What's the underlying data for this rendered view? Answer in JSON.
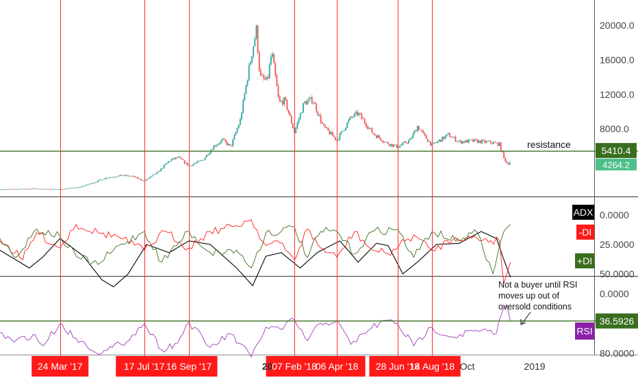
{
  "chart_data": [
    {
      "type": "candlestick",
      "panel": "price",
      "y_ticks": [
        {
          "label": "20000.0",
          "value": 20000
        },
        {
          "label": "16000.0",
          "value": 16000
        },
        {
          "label": "12000.0",
          "value": 12000
        },
        {
          "label": "8000.0",
          "value": 8000
        }
      ],
      "ylim": [
        0,
        22000
      ],
      "x_range": [
        "2017-01-01",
        "2018-12-31"
      ],
      "series_points": [
        [
          "2017-01-01",
          990
        ],
        [
          "2017-02-15",
          1060
        ],
        [
          "2017-03-24",
          980
        ],
        [
          "2017-04-20",
          1250
        ],
        [
          "2017-05-10",
          1800
        ],
        [
          "2017-05-25",
          2300
        ],
        [
          "2017-06-15",
          2600
        ],
        [
          "2017-07-01",
          2500
        ],
        [
          "2017-07-17",
          1950
        ],
        [
          "2017-08-05",
          3000
        ],
        [
          "2017-08-20",
          4300
        ],
        [
          "2017-09-01",
          4700
        ],
        [
          "2017-09-16",
          3700
        ],
        [
          "2017-10-05",
          4400
        ],
        [
          "2017-10-20",
          6000
        ],
        [
          "2017-11-01",
          6700
        ],
        [
          "2017-11-12",
          5900
        ],
        [
          "2017-11-25",
          9000
        ],
        [
          "2017-12-07",
          15000
        ],
        [
          "2017-12-17",
          19500
        ],
        [
          "2017-12-22",
          14000
        ],
        [
          "2018-01-01",
          13500
        ],
        [
          "2018-01-07",
          16900
        ],
        [
          "2018-01-17",
          11000
        ],
        [
          "2018-01-25",
          11300
        ],
        [
          "2018-02-07",
          7600
        ],
        [
          "2018-02-20",
          11000
        ],
        [
          "2018-03-04",
          11400
        ],
        [
          "2018-03-18",
          8300
        ],
        [
          "2018-04-06",
          6700
        ],
        [
          "2018-04-25",
          9300
        ],
        [
          "2018-05-05",
          9800
        ],
        [
          "2018-05-25",
          7500
        ],
        [
          "2018-06-12",
          6400
        ],
        [
          "2018-06-28",
          5900
        ],
        [
          "2018-07-15",
          6700
        ],
        [
          "2018-07-25",
          8300
        ],
        [
          "2018-08-05",
          7000
        ],
        [
          "2018-08-14",
          6100
        ],
        [
          "2018-09-05",
          7300
        ],
        [
          "2018-09-20",
          6500
        ],
        [
          "2018-10-10",
          6600
        ],
        [
          "2018-11-05",
          6400
        ],
        [
          "2018-11-14",
          6200
        ],
        [
          "2018-11-20",
          4600
        ],
        [
          "2018-11-25",
          3900
        ],
        [
          "2018-11-29",
          4264
        ]
      ],
      "resistance": {
        "value": 5410.4,
        "label": "resistance",
        "badge": "5410.4"
      },
      "last_price": "4264.2"
    },
    {
      "type": "line",
      "panel": "directional-movement",
      "y_ticks": [
        {
          "label": "50.0000",
          "value": 50
        },
        {
          "label": "25.0000",
          "value": 25
        },
        {
          "label": "0.0000",
          "value": 0
        }
      ],
      "ylim": [
        0,
        65
      ],
      "series": [
        {
          "name": "ADX",
          "color": "#000000",
          "points": [
            [
              "2017-01-01",
              30
            ],
            [
              "2017-02-10",
              45
            ],
            [
              "2017-02-28",
              36
            ],
            [
              "2017-03-24",
              20
            ],
            [
              "2017-04-25",
              35
            ],
            [
              "2017-05-20",
              55
            ],
            [
              "2017-06-05",
              61
            ],
            [
              "2017-06-25",
              50
            ],
            [
              "2017-07-20",
              25
            ],
            [
              "2017-08-20",
              32
            ],
            [
              "2017-09-16",
              22
            ],
            [
              "2017-10-15",
              25
            ],
            [
              "2017-11-20",
              45
            ],
            [
              "2017-12-12",
              60
            ],
            [
              "2017-12-30",
              35
            ],
            [
              "2018-01-20",
              32
            ],
            [
              "2018-02-15",
              45
            ],
            [
              "2018-03-10",
              32
            ],
            [
              "2018-04-10",
              22
            ],
            [
              "2018-05-05",
              40
            ],
            [
              "2018-05-30",
              24
            ],
            [
              "2018-06-15",
              26
            ],
            [
              "2018-07-05",
              50
            ],
            [
              "2018-07-25",
              40
            ],
            [
              "2018-08-20",
              25
            ],
            [
              "2018-09-20",
              24
            ],
            [
              "2018-10-20",
              14
            ],
            [
              "2018-11-10",
              20
            ],
            [
              "2018-11-20",
              38
            ],
            [
              "2018-11-29",
              53
            ]
          ]
        },
        {
          "name": "-DI",
          "color": "#ff1a1a",
          "points": [
            [
              "2017-01-01",
              20
            ],
            [
              "2017-02-01",
              38
            ],
            [
              "2017-02-20",
              15
            ],
            [
              "2017-03-24",
              28
            ],
            [
              "2017-04-15",
              8
            ],
            [
              "2017-05-15",
              15
            ],
            [
              "2017-06-10",
              18
            ],
            [
              "2017-07-17",
              30
            ],
            [
              "2017-08-15",
              14
            ],
            [
              "2017-09-16",
              28
            ],
            [
              "2017-10-15",
              14
            ],
            [
              "2017-11-15",
              10
            ],
            [
              "2017-12-10",
              4
            ],
            [
              "2017-12-30",
              26
            ],
            [
              "2018-01-15",
              22
            ],
            [
              "2018-02-07",
              38
            ],
            [
              "2018-02-25",
              12
            ],
            [
              "2018-03-15",
              28
            ],
            [
              "2018-04-06",
              36
            ],
            [
              "2018-04-30",
              14
            ],
            [
              "2018-05-25",
              30
            ],
            [
              "2018-06-15",
              33
            ],
            [
              "2018-07-20",
              17
            ],
            [
              "2018-08-14",
              30
            ],
            [
              "2018-09-15",
              19
            ],
            [
              "2018-10-15",
              20
            ],
            [
              "2018-11-14",
              22
            ],
            [
              "2018-11-20",
              58
            ],
            [
              "2018-11-29",
              40
            ]
          ]
        },
        {
          "name": "+DI",
          "color": "#3a6e1f",
          "points": [
            [
              "2017-01-01",
              22
            ],
            [
              "2017-01-25",
              35
            ],
            [
              "2017-02-20",
              12
            ],
            [
              "2017-03-24",
              18
            ],
            [
              "2017-04-15",
              35
            ],
            [
              "2017-05-15",
              42
            ],
            [
              "2017-06-05",
              30
            ],
            [
              "2017-07-17",
              14
            ],
            [
              "2017-08-10",
              40
            ],
            [
              "2017-09-16",
              14
            ],
            [
              "2017-10-15",
              32
            ],
            [
              "2017-11-20",
              30
            ],
            [
              "2017-12-10",
              45
            ],
            [
              "2017-12-30",
              15
            ],
            [
              "2018-01-20",
              14
            ],
            [
              "2018-02-07",
              10
            ],
            [
              "2018-02-25",
              36
            ],
            [
              "2018-03-15",
              14
            ],
            [
              "2018-04-06",
              14
            ],
            [
              "2018-04-30",
              33
            ],
            [
              "2018-05-25",
              14
            ],
            [
              "2018-06-28",
              12
            ],
            [
              "2018-07-20",
              36
            ],
            [
              "2018-08-14",
              14
            ],
            [
              "2018-09-15",
              22
            ],
            [
              "2018-10-15",
              15
            ],
            [
              "2018-11-05",
              50
            ],
            [
              "2018-11-20",
              14
            ],
            [
              "2018-11-29",
              8
            ]
          ]
        }
      ],
      "legend": [
        {
          "label": "ADX",
          "color": "#000000"
        },
        {
          "label": "-DI",
          "color": "#ff1a1a"
        },
        {
          "label": "+DI",
          "color": "#3a6e1f"
        }
      ]
    },
    {
      "type": "line",
      "panel": "rsi",
      "y_ticks": [
        {
          "label": "80.0000",
          "value": 80
        },
        {
          "label": "0.0000",
          "value": 0
        }
      ],
      "ylim": [
        0,
        100
      ],
      "series": [
        {
          "name": "RSI",
          "color": "#9c3bb6",
          "points": [
            [
              "2017-01-01",
              52
            ],
            [
              "2017-01-20",
              65
            ],
            [
              "2017-02-15",
              55
            ],
            [
              "2017-03-01",
              70
            ],
            [
              "2017-03-24",
              40
            ],
            [
              "2017-04-15",
              60
            ],
            [
              "2017-05-20",
              80
            ],
            [
              "2017-06-15",
              68
            ],
            [
              "2017-07-01",
              55
            ],
            [
              "2017-07-17",
              40
            ],
            [
              "2017-08-10",
              75
            ],
            [
              "2017-09-01",
              66
            ],
            [
              "2017-09-16",
              38
            ],
            [
              "2017-10-15",
              72
            ],
            [
              "2017-11-12",
              54
            ],
            [
              "2017-12-10",
              85
            ],
            [
              "2017-12-30",
              45
            ],
            [
              "2018-01-20",
              48
            ],
            [
              "2018-02-07",
              35
            ],
            [
              "2018-02-25",
              63
            ],
            [
              "2018-03-15",
              40
            ],
            [
              "2018-04-06",
              36
            ],
            [
              "2018-04-25",
              68
            ],
            [
              "2018-05-20",
              48
            ],
            [
              "2018-06-12",
              36
            ],
            [
              "2018-06-28",
              40
            ],
            [
              "2018-07-20",
              70
            ],
            [
              "2018-08-14",
              45
            ],
            [
              "2018-09-10",
              58
            ],
            [
              "2018-10-10",
              50
            ],
            [
              "2018-11-10",
              53
            ],
            [
              "2018-11-20",
              18
            ],
            [
              "2018-11-24",
              15
            ],
            [
              "2018-11-29",
              37
            ]
          ]
        }
      ],
      "rsi_line": {
        "value": 36.5926,
        "badge": "36.5926",
        "label": "RSI"
      },
      "annotation": "Not a buyer until RSI moves up out of oversold conditions"
    }
  ],
  "date_markers": [
    {
      "date": "2017-03-24",
      "label": "24 Mar '17"
    },
    {
      "date": "2017-07-17",
      "label": "17 Jul '17"
    },
    {
      "date": "2017-09-16",
      "label": "16 Sep '17"
    },
    {
      "date": "2018-02-07",
      "label": "07 Feb '18"
    },
    {
      "date": "2018-04-06",
      "label": "06 Apr '18"
    },
    {
      "date": "2018-06-28",
      "label": "28 Jun '18"
    },
    {
      "date": "2018-08-14",
      "label": "14 Aug '18"
    }
  ],
  "x_axis_labels": [
    {
      "date": "2018-01-01",
      "label": "20"
    },
    {
      "date": "2018-10-01",
      "label": "Oct"
    },
    {
      "date": "2019-01-01",
      "label": "2019"
    }
  ],
  "colors": {
    "up": "#26a69a",
    "down": "#ef5350",
    "marker": "#ff2b2b",
    "marker_bg": "#ff1a1a",
    "level": "#3a6e1f",
    "axis": "#555555"
  }
}
